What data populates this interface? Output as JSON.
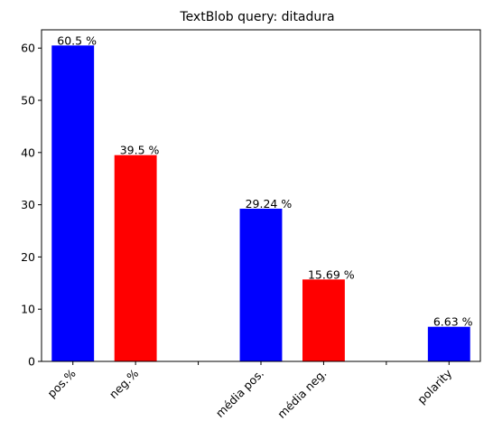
{
  "chart_data": {
    "type": "bar",
    "title": "TextBlob query: ditadura",
    "xlabel": "",
    "ylabel": "",
    "ylim": [
      0,
      63.5
    ],
    "yticks": [
      0,
      10,
      20,
      30,
      40,
      50,
      60
    ],
    "xlim": [
      0,
      7
    ],
    "bars": [
      {
        "category": "pos.%",
        "x": 0.5,
        "value": 60.5,
        "label": "60.5 %",
        "color": "#0000ff"
      },
      {
        "category": "neg.%",
        "x": 1.5,
        "value": 39.5,
        "label": "39.5 %",
        "color": "#ff0000"
      },
      {
        "category": "média pos.",
        "x": 3.5,
        "value": 29.24,
        "label": "29.24 %",
        "color": "#0000ff"
      },
      {
        "category": "média neg.",
        "x": 4.5,
        "value": 15.69,
        "label": "15.69 %",
        "color": "#ff0000"
      },
      {
        "category": "polarity",
        "x": 6.5,
        "value": 6.63,
        "label": "6.63 %",
        "color": "#0000ff"
      }
    ],
    "unlabeled_xticks": [
      2.5,
      5.5
    ],
    "grid": false,
    "legend": "none"
  }
}
